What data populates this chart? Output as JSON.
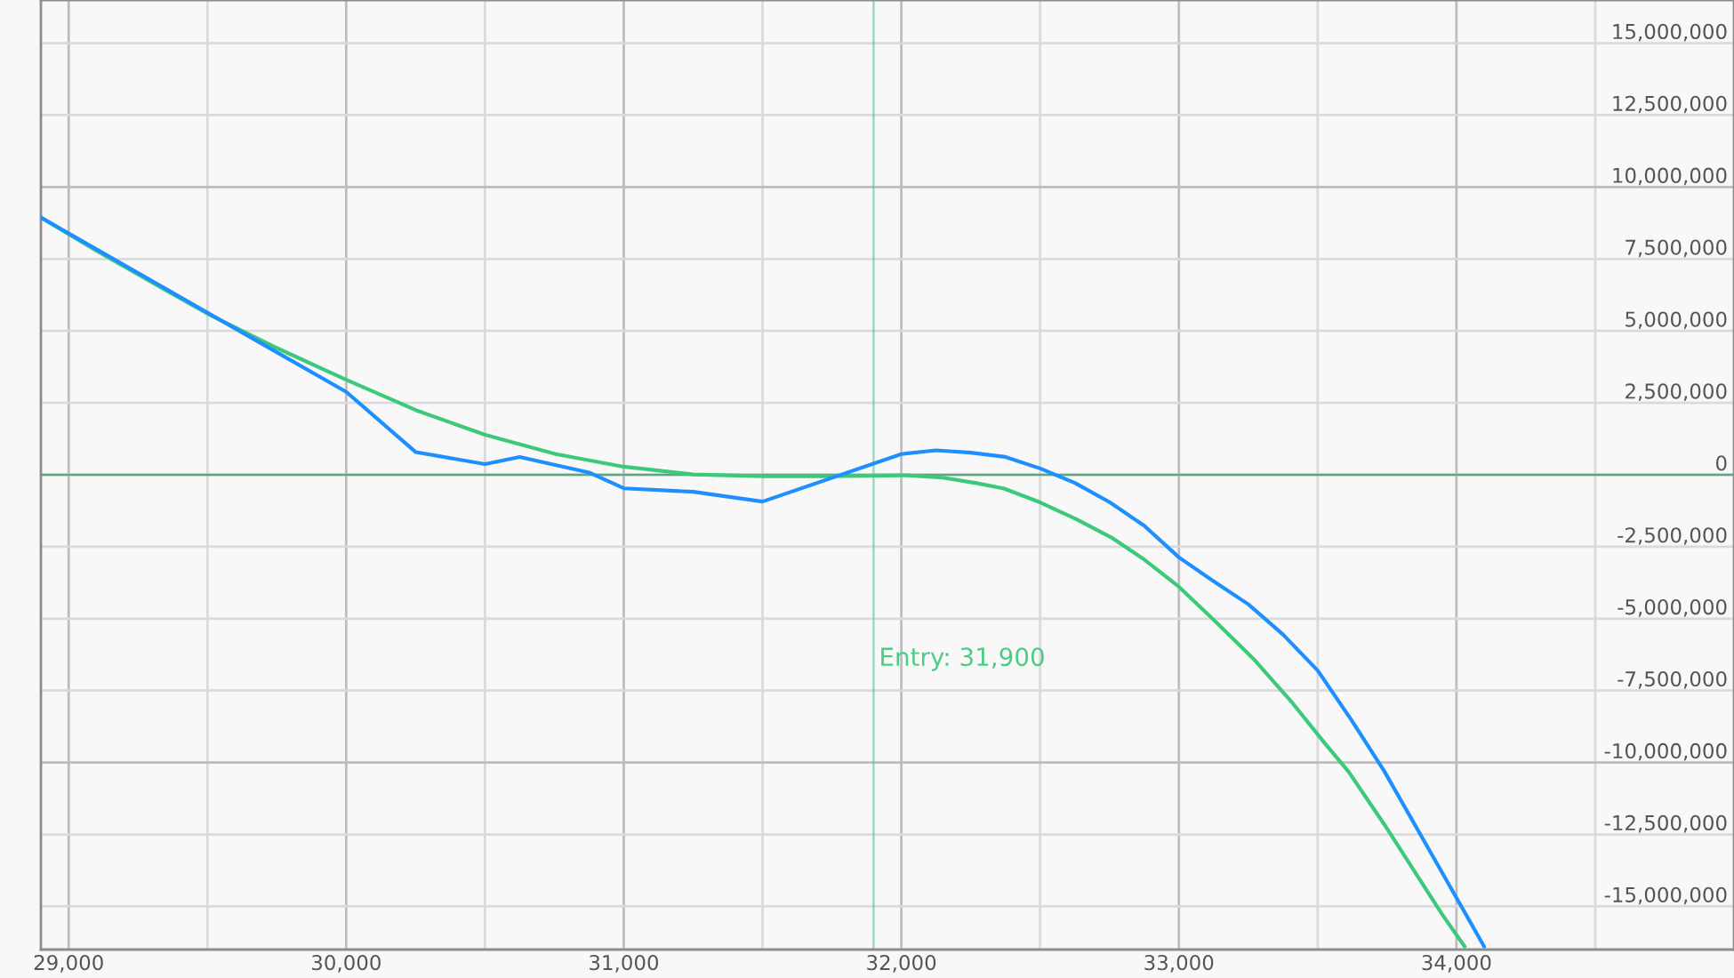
{
  "chart_data": {
    "type": "line",
    "xlim": [
      28900,
      35000
    ],
    "ylim": [
      -16500000,
      16500000
    ],
    "xticks": [
      {
        "value": 29000,
        "label": "29,000"
      },
      {
        "value": 29500,
        "label": null
      },
      {
        "value": 30000,
        "label": "30,000"
      },
      {
        "value": 30500,
        "label": null
      },
      {
        "value": 31000,
        "label": "31,000"
      },
      {
        "value": 31500,
        "label": null
      },
      {
        "value": 32000,
        "label": "32,000"
      },
      {
        "value": 32500,
        "label": null
      },
      {
        "value": 33000,
        "label": "33,000"
      },
      {
        "value": 33500,
        "label": null
      },
      {
        "value": 34000,
        "label": "34,000"
      },
      {
        "value": 34500,
        "label": null
      }
    ],
    "yticks": [
      {
        "value": 15000000,
        "label": "15,000,000"
      },
      {
        "value": 12500000,
        "label": "12,500,000"
      },
      {
        "value": 10000000,
        "label": "10,000,000"
      },
      {
        "value": 7500000,
        "label": "7,500,000"
      },
      {
        "value": 5000000,
        "label": "5,000,000"
      },
      {
        "value": 2500000,
        "label": "2,500,000"
      },
      0,
      {
        "value": -2500000,
        "label": "-2,500,000"
      },
      {
        "value": -5000000,
        "label": "-5,000,000"
      },
      {
        "value": -7500000,
        "label": "-7,500,000"
      },
      {
        "value": -10000000,
        "label": "-10,000,000"
      },
      {
        "value": -12500000,
        "label": "-12,500,000"
      },
      {
        "value": -15000000,
        "label": "-15,000,000"
      }
    ],
    "grid": true,
    "series": [
      {
        "color": "#3dc97c",
        "x": [
          28900,
          29100,
          29360,
          29500,
          29740,
          30000,
          30250,
          30500,
          30755,
          31000,
          31250,
          31500,
          31730,
          32020,
          32150,
          32270,
          32370,
          32500,
          32630,
          32760,
          32870,
          33000,
          33130,
          33270,
          33410,
          33530,
          33610,
          33740,
          33830,
          33950,
          34030
        ],
        "values": [
          8940000,
          7790000,
          6360000,
          5600000,
          4450000,
          3300000,
          2250000,
          1390000,
          720000,
          280000,
          10000,
          -50000,
          -50000,
          -20000,
          -100000,
          -290000,
          -480000,
          -960000,
          -1540000,
          -2200000,
          -2910000,
          -3890000,
          -5080000,
          -6410000,
          -7940000,
          -9380000,
          -10300000,
          -12150000,
          -13500000,
          -15300000,
          -16400000
        ]
      },
      {
        "color": "#1e8fff",
        "x": [
          28900,
          30000,
          30250,
          30500,
          30625,
          30875,
          31000,
          31250,
          31500,
          32000,
          32125,
          32250,
          32375,
          32500,
          32625,
          32750,
          32875,
          33000,
          33125,
          33250,
          33375,
          33500,
          33620,
          33740,
          33870,
          34000,
          34100
        ],
        "values": [
          8940000,
          2880000,
          790000,
          370000,
          620000,
          80000,
          -470000,
          -590000,
          -930000,
          720000,
          850000,
          770000,
          620000,
          220000,
          -280000,
          -950000,
          -1770000,
          -2870000,
          -3700000,
          -4500000,
          -5550000,
          -6800000,
          -8500000,
          -10300000,
          -12500000,
          -14700000,
          -16400000
        ]
      }
    ],
    "ref_lines": [
      {
        "axis": "y",
        "value": 0,
        "color": "#5ea67e"
      },
      {
        "axis": "x",
        "value": 31900,
        "label": "Entry: 31,900",
        "color": "#4ccb86"
      }
    ]
  }
}
